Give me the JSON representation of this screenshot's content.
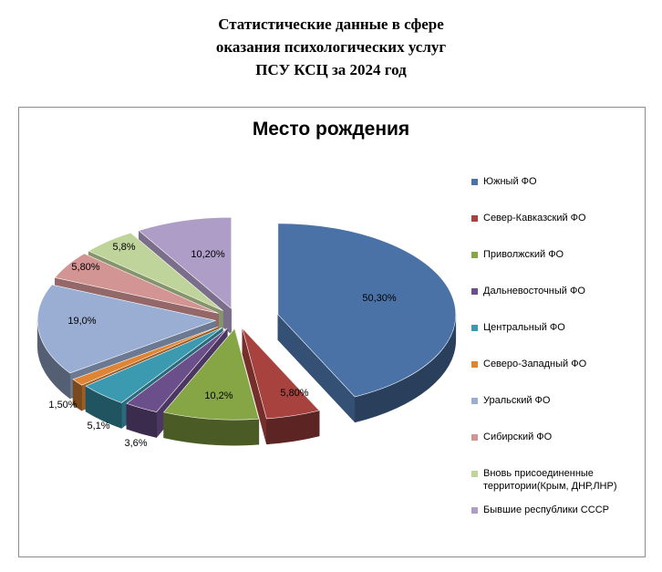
{
  "page_title": {
    "line1": "Статистические данные в сфере",
    "line2": "оказания психологических услуг",
    "line3": "ПСУ КСЦ за 2024 год"
  },
  "chart_data": {
    "type": "pie",
    "title": "Место рождения",
    "legend_position": "right",
    "three_d": true,
    "exploded": true,
    "slices": [
      {
        "name": "Южный ФО",
        "value": 50.3,
        "label": "50,30%",
        "color": "#4a72a6"
      },
      {
        "name": "Север-Кавказский ФО",
        "value": 5.8,
        "label": "5,80%",
        "color": "#a8423e"
      },
      {
        "name": "Приволжский ФО",
        "value": 10.2,
        "label": "10,2%",
        "color": "#86a544"
      },
      {
        "name": "Дальневосточный ФО",
        "value": 3.6,
        "label": "3,6%",
        "color": "#6b4f8a"
      },
      {
        "name": "Центральный ФО",
        "value": 5.1,
        "label": "5,1%",
        "color": "#3b99b0"
      },
      {
        "name": "Северо-Западный ФО",
        "value": 1.5,
        "label": "1,50%",
        "color": "#de8435"
      },
      {
        "name": "Уральский ФО",
        "value": 19.0,
        "label": "19,0%",
        "color": "#9aadd2"
      },
      {
        "name": "Сибирский ФО",
        "value": 5.8,
        "label": "5,80%",
        "color": "#d39594"
      },
      {
        "name": "Вновь присоединенные территории(Крым, ДНР,ЛНР)",
        "value": 5.8,
        "label": "5,8%",
        "color": "#bfd49a"
      },
      {
        "name": "Бывшие республики СССР",
        "value": 10.2,
        "label": "10,20%",
        "color": "#ae9dc6"
      }
    ]
  }
}
